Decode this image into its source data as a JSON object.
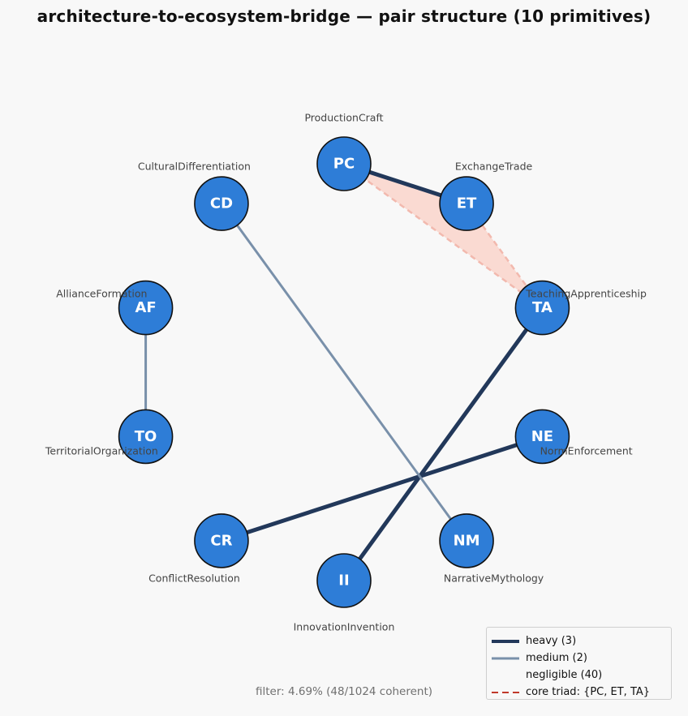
{
  "title": "architecture-to-ecosystem-bridge — pair structure  (10 primitives)",
  "footer": "filter: 4.69%  (48/1024 coherent)",
  "colors": {
    "node_fill": "#2e7dd7",
    "node_stroke": "#111111",
    "heavy": "#22385a",
    "medium": "#7990aa",
    "triad_fill": "#fadad2",
    "triad_edge": "#c0392b"
  },
  "nodes": [
    {
      "id": "PC",
      "name": "ProductionCraft"
    },
    {
      "id": "ET",
      "name": "ExchangeTrade"
    },
    {
      "id": "TA",
      "name": "TeachingApprenticeship"
    },
    {
      "id": "NE",
      "name": "NormEnforcement"
    },
    {
      "id": "NM",
      "name": "NarrativeMythology"
    },
    {
      "id": "II",
      "name": "InnovationInvention"
    },
    {
      "id": "CR",
      "name": "ConflictResolution"
    },
    {
      "id": "TO",
      "name": "TerritorialOrganization"
    },
    {
      "id": "AF",
      "name": "AllianceFormation"
    },
    {
      "id": "CD",
      "name": "CulturalDifferentiation"
    }
  ],
  "edges": [
    {
      "source": "PC",
      "target": "ET",
      "weight": "heavy"
    },
    {
      "source": "TA",
      "target": "II",
      "weight": "heavy"
    },
    {
      "source": "NE",
      "target": "CR",
      "weight": "heavy"
    },
    {
      "source": "CD",
      "target": "NM",
      "weight": "medium"
    },
    {
      "source": "AF",
      "target": "TO",
      "weight": "medium"
    }
  ],
  "core_triad": [
    "PC",
    "ET",
    "TA"
  ],
  "legend": [
    {
      "style": "heavy",
      "label": "heavy (3)"
    },
    {
      "style": "medium",
      "label": "medium (2)"
    },
    {
      "style": "none",
      "label": "negligible (40)"
    },
    {
      "style": "dashed",
      "label": "core triad: {PC, ET, TA}"
    }
  ]
}
